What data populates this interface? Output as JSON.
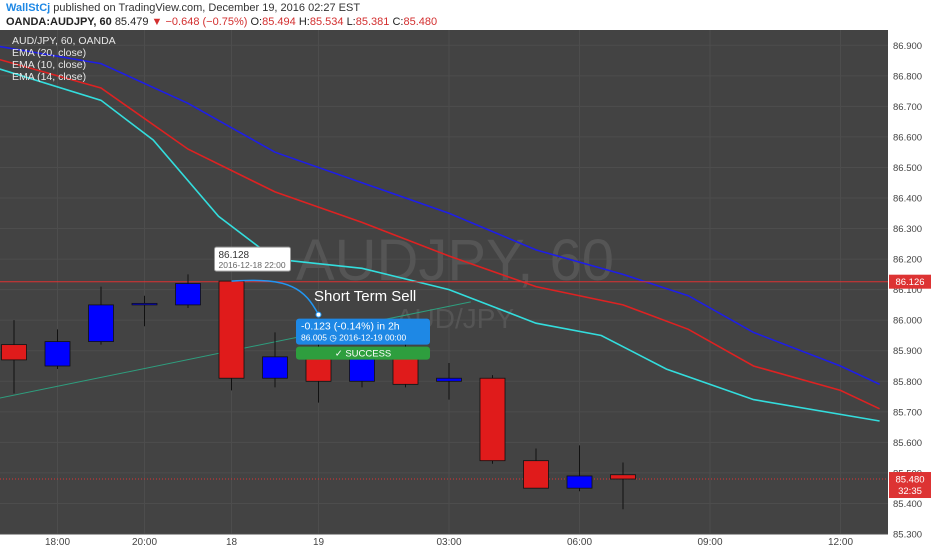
{
  "header": {
    "author": "WallStCj",
    "published_text": "published on TradingView.com, December 19, 2016 02:27 EST",
    "symbol": "OANDA:AUDJPY, 60",
    "last": "85.479",
    "change": "−0.648 (−0.75%)",
    "o_label": "O:",
    "o_val": "85.494",
    "h_label": "H:",
    "h_val": "85.534",
    "l_label": "L:",
    "l_val": "85.381",
    "c_label": "C:",
    "c_val": "85.480"
  },
  "colors": {
    "background": "#434343",
    "bull": "#0000ff",
    "bear": "#e01b1b",
    "ema20": "#1e1ee6",
    "ema10": "#dd2222",
    "ema14": "#33dddd",
    "trendline": "#2e9e7e",
    "price_line": "#dd3333"
  },
  "chart_data": {
    "type": "candlestick",
    "title": "AUD/JPY, 60, OANDA",
    "watermark": "AUDJPY, 60",
    "watermark_sub": "AUD/JPY",
    "legend": [
      "EMA (20, close)",
      "EMA (10, close)",
      "EMA (14, close)"
    ],
    "ylim": [
      85.3,
      86.95
    ],
    "y_ticks": [
      "86.900",
      "86.800",
      "86.700",
      "86.600",
      "86.500",
      "86.400",
      "86.300",
      "86.200",
      "86.100",
      "86.000",
      "85.900",
      "85.800",
      "85.700",
      "85.600",
      "85.500",
      "85.400",
      "85.300"
    ],
    "x_ticks": [
      {
        "label": "18:00",
        "index": 1
      },
      {
        "label": "20:00",
        "index": 3
      },
      {
        "label": "18",
        "index": 5
      },
      {
        "label": "19",
        "index": 7
      },
      {
        "label": "03:00",
        "index": 10
      },
      {
        "label": "06:00",
        "index": 13
      },
      {
        "label": "09:00",
        "index": 16
      },
      {
        "label": "12:00",
        "index": 19
      }
    ],
    "candles": [
      {
        "o": 85.92,
        "h": 86.0,
        "l": 85.76,
        "c": 85.87
      },
      {
        "o": 85.85,
        "h": 85.97,
        "l": 85.84,
        "c": 85.93
      },
      {
        "o": 85.93,
        "h": 86.11,
        "l": 85.92,
        "c": 86.05
      },
      {
        "o": 86.05,
        "h": 86.08,
        "l": 85.98,
        "c": 86.055
      },
      {
        "o": 86.05,
        "h": 86.15,
        "l": 86.04,
        "c": 86.12
      },
      {
        "o": 86.128,
        "h": 86.128,
        "l": 85.77,
        "c": 85.81
      },
      {
        "o": 85.81,
        "h": 85.96,
        "l": 85.78,
        "c": 85.88
      },
      {
        "o": 85.88,
        "h": 85.92,
        "l": 85.73,
        "c": 85.8
      },
      {
        "o": 85.8,
        "h": 85.88,
        "l": 85.78,
        "c": 85.89
      },
      {
        "o": 85.89,
        "h": 85.92,
        "l": 85.78,
        "c": 85.79
      },
      {
        "o": 85.8,
        "h": 85.86,
        "l": 85.74,
        "c": 85.81
      },
      {
        "o": 85.81,
        "h": 85.82,
        "l": 85.53,
        "c": 85.54
      },
      {
        "o": 85.54,
        "h": 85.58,
        "l": 85.45,
        "c": 85.45
      },
      {
        "o": 85.45,
        "h": 85.59,
        "l": 85.44,
        "c": 85.49
      },
      {
        "o": 85.494,
        "h": 85.534,
        "l": 85.381,
        "c": 85.48
      }
    ],
    "series": [
      {
        "name": "EMA (20, close)",
        "color": "#1e1ee6",
        "points": [
          [
            -0.5,
            86.9
          ],
          [
            2,
            86.84
          ],
          [
            4,
            86.71
          ],
          [
            6,
            86.55
          ],
          [
            8,
            86.45
          ],
          [
            10,
            86.35
          ],
          [
            12,
            86.23
          ],
          [
            14,
            86.15
          ],
          [
            15.5,
            86.08
          ],
          [
            17,
            85.96
          ],
          [
            19,
            85.85
          ],
          [
            19.9,
            85.79
          ]
        ]
      },
      {
        "name": "EMA (10, close)",
        "color": "#dd2222",
        "points": [
          [
            -0.5,
            86.86
          ],
          [
            2,
            86.76
          ],
          [
            4,
            86.56
          ],
          [
            6,
            86.42
          ],
          [
            8,
            86.32
          ],
          [
            10,
            86.21
          ],
          [
            12,
            86.11
          ],
          [
            14,
            86.05
          ],
          [
            15.5,
            85.97
          ],
          [
            17,
            85.85
          ],
          [
            19,
            85.77
          ],
          [
            19.9,
            85.71
          ]
        ]
      },
      {
        "name": "EMA (14, close)",
        "color": "#33dddd",
        "points": [
          [
            -0.5,
            86.83
          ],
          [
            2,
            86.72
          ],
          [
            3.2,
            86.59
          ],
          [
            4.7,
            86.34
          ],
          [
            6,
            86.2
          ],
          [
            8,
            86.17
          ],
          [
            10,
            86.1
          ],
          [
            12,
            85.99
          ],
          [
            13.5,
            85.95
          ],
          [
            15,
            85.84
          ],
          [
            17,
            85.74
          ],
          [
            19.9,
            85.67
          ]
        ]
      }
    ],
    "trendline": {
      "from": [
        -0.5,
        85.74
      ],
      "to": [
        10.5,
        86.06
      ]
    },
    "price_line": {
      "value": 86.126,
      "label": "86.126"
    },
    "last_price": {
      "value": 85.48,
      "label": "85.480",
      "countdown": "32:35"
    },
    "annotation_text": "Short Term Sell",
    "callout_top": {
      "price": "86.128",
      "date": "2016-12-18 22:00"
    },
    "callout_bottom": {
      "line1": "-0.123 (-0.14%) in 2h",
      "line2": "86.005 ◷ 2016-12-19 00:00"
    },
    "badge": "✓ SUCCESS"
  }
}
